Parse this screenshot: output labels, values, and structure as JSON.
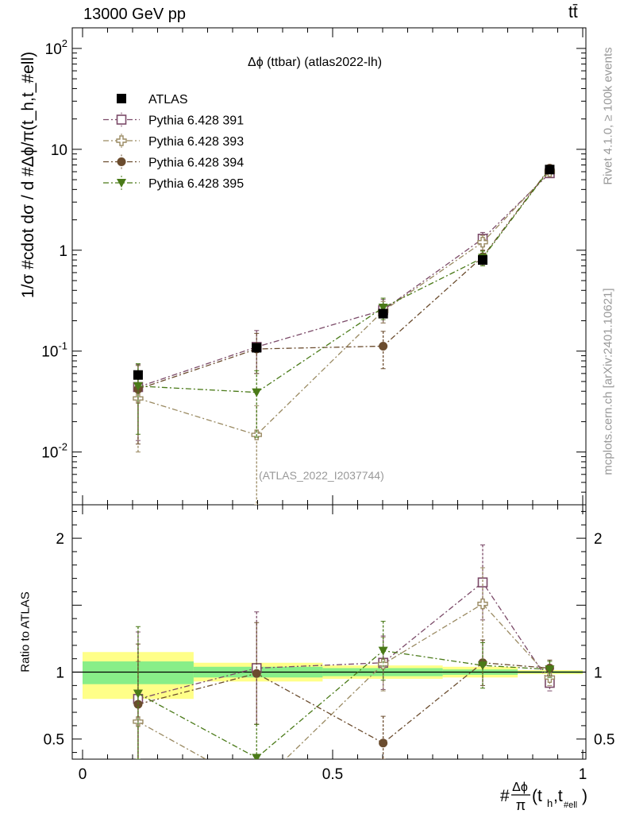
{
  "header": {
    "left": "13000 GeV pp",
    "right": "tt̄"
  },
  "side": {
    "rivet": "Rivet 4.1.0, ≥ 100k events",
    "mcplots": "mcplots.cern.ch [arXiv:2401.10621]"
  },
  "chart_data": [
    {
      "type": "line",
      "title": "Δϕ (ttbar) (atlas2022-lh)",
      "watermark": "(ATLAS_2022_I2037744)",
      "ylabel": "1/σ #cdot dσ / d #Δϕ/π(t_h,t_#ell)",
      "xlabel": "#Δϕ/π(t_h,t_#ell)",
      "yscale": "log",
      "ylim": [
        0.003,
        160
      ],
      "xlim": [
        -0.02,
        1.01
      ],
      "yticks": [
        {
          "v": 0.01,
          "label": "10^-2"
        },
        {
          "v": 0.1,
          "label": "10^-1"
        },
        {
          "v": 1,
          "label": "1"
        },
        {
          "v": 10,
          "label": "10"
        },
        {
          "v": 100,
          "label": "10^2"
        }
      ],
      "x": [
        0.111,
        0.348,
        0.601,
        0.8,
        0.934
      ],
      "series": [
        {
          "name": "ATLAS",
          "color": "#000000",
          "marker": "square-filled",
          "values": [
            0.058,
            0.108,
            0.235,
            0.8,
            6.3
          ],
          "err_lo": [
            0.006,
            0.008,
            0.02,
            0.06,
            0.35
          ],
          "err_hi": [
            0.006,
            0.008,
            0.02,
            0.06,
            0.35
          ]
        },
        {
          "name": "Pythia 6.428 391",
          "color": "#7b4a68",
          "marker": "square-open",
          "dash": "dashdot",
          "values": [
            0.044,
            0.11,
            0.255,
            1.3,
            5.8
          ],
          "err_lo": [
            0.031,
            0.05,
            0.065,
            0.2,
            0.35
          ],
          "err_hi": [
            0.03,
            0.05,
            0.07,
            0.2,
            0.35
          ]
        },
        {
          "name": "Pythia 6.428 393",
          "color": "#9a8a62",
          "marker": "plus-open",
          "dash": "dashdot",
          "values": [
            0.034,
            0.0148,
            0.25,
            1.2,
            6.0
          ],
          "err_lo": [
            0.024,
            0.0148,
            0.06,
            0.2,
            0.35
          ],
          "err_hi": [
            0.025,
            0.014,
            0.06,
            0.2,
            0.35
          ]
        },
        {
          "name": "Pythia 6.428 394",
          "color": "#6b4c2e",
          "marker": "circle-filled",
          "dash": "dashdot",
          "values": [
            0.042,
            0.105,
            0.112,
            0.86,
            6.5
          ],
          "err_lo": [
            0.03,
            0.045,
            0.045,
            0.14,
            0.35
          ],
          "err_hi": [
            0.03,
            0.045,
            0.045,
            0.14,
            0.35
          ]
        },
        {
          "name": "Pythia 6.428 395",
          "color": "#4a7a18",
          "marker": "triangle-down-filled",
          "dash": "dashdot",
          "values": [
            0.045,
            0.039,
            0.27,
            0.84,
            6.4
          ],
          "err_lo": [
            0.03,
            0.025,
            0.065,
            0.14,
            0.35
          ],
          "err_hi": [
            0.03,
            0.025,
            0.065,
            0.14,
            0.35
          ]
        }
      ]
    },
    {
      "type": "line",
      "ylabel": "Ratio to ATLAS",
      "xlabel": "#Δϕ/π(t_h,t_#ell)",
      "ylim": [
        0.35,
        2.25
      ],
      "yticks": [
        {
          "v": 0.5,
          "label": "0.5"
        },
        {
          "v": 1,
          "label": "1"
        },
        {
          "v": 2,
          "label": "2"
        }
      ],
      "xticks": [
        {
          "v": 0,
          "label": "0"
        },
        {
          "v": 0.5,
          "label": "0.5"
        },
        {
          "v": 1,
          "label": "1"
        }
      ],
      "bands": [
        {
          "x0": 0.0,
          "x1": 0.222,
          "yellow": [
            0.8,
            1.15
          ],
          "green": [
            0.91,
            1.08
          ]
        },
        {
          "x0": 0.222,
          "x1": 0.48,
          "yellow": [
            0.93,
            1.07
          ],
          "green": [
            0.96,
            1.04
          ]
        },
        {
          "x0": 0.48,
          "x1": 0.72,
          "yellow": [
            0.95,
            1.05
          ],
          "green": [
            0.97,
            1.03
          ]
        },
        {
          "x0": 0.72,
          "x1": 0.87,
          "yellow": [
            0.96,
            1.04
          ],
          "green": [
            0.98,
            1.02
          ]
        },
        {
          "x0": 0.87,
          "x1": 1.0,
          "yellow": [
            0.985,
            1.015
          ],
          "green": [
            0.993,
            1.007
          ]
        }
      ],
      "series": [
        {
          "name": "Pythia 6.428 391",
          "values": [
            0.8,
            1.03,
            1.07,
            1.67,
            0.92
          ],
          "err_lo": [
            0.5,
            0.42,
            0.2,
            0.28,
            0.06
          ],
          "err_hi": [
            0.5,
            0.42,
            0.2,
            0.28,
            0.06
          ]
        },
        {
          "name": "Pythia 6.428 393",
          "values": [
            0.63,
            0.14,
            1.06,
            1.51,
            0.96
          ],
          "err_lo": [
            0.45,
            0.13,
            0.2,
            0.27,
            0.06
          ],
          "err_hi": [
            0.45,
            0.13,
            0.2,
            0.27,
            0.06
          ]
        },
        {
          "name": "Pythia 6.428 394",
          "values": [
            0.76,
            0.99,
            0.47,
            1.07,
            1.03
          ],
          "err_lo": [
            0.45,
            0.38,
            0.2,
            0.17,
            0.06
          ],
          "err_hi": [
            0.45,
            0.38,
            0.2,
            0.17,
            0.06
          ]
        },
        {
          "name": "Pythia 6.428 395",
          "values": [
            0.84,
            0.36,
            1.16,
            1.05,
            1.02
          ],
          "err_lo": [
            0.5,
            0.25,
            0.22,
            0.17,
            0.06
          ],
          "err_hi": [
            0.5,
            0.25,
            0.22,
            0.17,
            0.06
          ]
        }
      ]
    }
  ]
}
